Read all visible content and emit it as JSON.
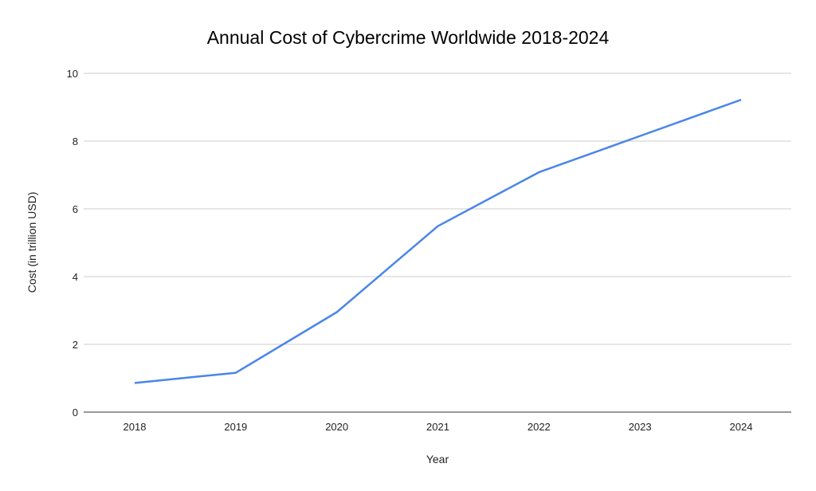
{
  "chart_data": {
    "type": "line",
    "title": "Annual Cost of Cybercrime Worldwide 2018-2024",
    "xlabel": "Year",
    "ylabel": "Cost (in trillion USD)",
    "categories": [
      "2018",
      "2019",
      "2020",
      "2021",
      "2022",
      "2023",
      "2024"
    ],
    "series": [
      {
        "name": "Cost (in trillion USD)",
        "values": [
          0.86,
          1.16,
          2.95,
          5.49,
          7.08,
          8.15,
          9.22
        ],
        "color": "#4a86e8"
      }
    ],
    "ylim": [
      0,
      10
    ],
    "yticks": [
      "0",
      "2",
      "4",
      "6",
      "8",
      "10"
    ],
    "grid": true,
    "legend": "none"
  }
}
